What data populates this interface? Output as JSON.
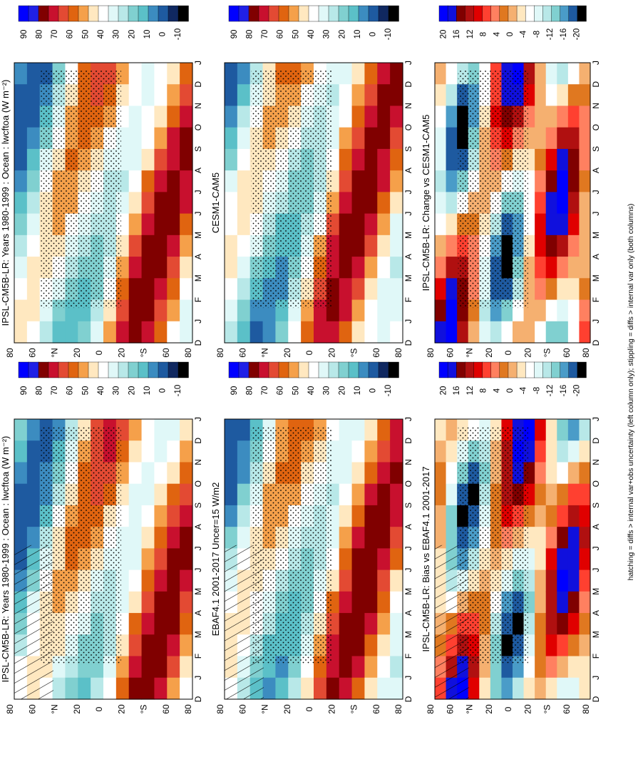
{
  "figure": {
    "footnote": "hatching = diffs > internal var+obs uncertainty (left column only); stippling = diffs > internal var only (both columns)"
  },
  "chart_data": [
    {
      "type": "heatmap",
      "id": "p1",
      "title": "IPSL-CM5B-LR: Years 1980-1999 : Ocean : lwcftoa (W m⁻²)",
      "x": [
        "D",
        "J",
        "F",
        "M",
        "A",
        "M",
        "J",
        "J",
        "A",
        "S",
        "O",
        "N",
        "D",
        "J"
      ],
      "y": [
        "80",
        "60",
        "°N",
        "20",
        "0",
        "20",
        "°S",
        "60",
        "80"
      ],
      "colorbar": [
        "90",
        "80",
        "70",
        "60",
        "50",
        "40",
        "30",
        "20",
        "10",
        "0",
        "-10"
      ],
      "hatching": true,
      "stippling": true
    },
    {
      "type": "heatmap",
      "id": "p2",
      "title": "IPSL-CM5B-LR: Years 1980-1999 : Ocean : lwcftoa (W m⁻²)",
      "x": [
        "D",
        "J",
        "F",
        "M",
        "A",
        "M",
        "J",
        "J",
        "A",
        "S",
        "O",
        "N",
        "D",
        "J"
      ],
      "y": [
        "80",
        "60",
        "°N",
        "20",
        "0",
        "20",
        "°S",
        "60",
        "80"
      ],
      "colorbar": [
        "90",
        "80",
        "70",
        "60",
        "50",
        "40",
        "30",
        "20",
        "10",
        "0",
        "-10"
      ],
      "hatching": false,
      "stippling": true
    },
    {
      "type": "heatmap",
      "id": "p3",
      "title": "EBAF4.1 2001-2017 Uncer=15 W/m2",
      "x": [
        "D",
        "J",
        "F",
        "M",
        "A",
        "M",
        "J",
        "J",
        "A",
        "S",
        "O",
        "N",
        "D",
        "J"
      ],
      "y": [
        "80",
        "60",
        "°N",
        "20",
        "0",
        "20",
        "°S",
        "60",
        "80"
      ],
      "colorbar": [
        "90",
        "80",
        "70",
        "60",
        "50",
        "40",
        "30",
        "20",
        "10",
        "0",
        "-10"
      ],
      "hatching": true,
      "stippling": true
    },
    {
      "type": "heatmap",
      "id": "p4",
      "title": "CESM1-CAM5",
      "x": [
        "D",
        "J",
        "F",
        "M",
        "A",
        "M",
        "J",
        "J",
        "A",
        "S",
        "O",
        "N",
        "D",
        "J"
      ],
      "y": [
        "80",
        "60",
        "°N",
        "20",
        "0",
        "20",
        "°S",
        "60",
        "80"
      ],
      "colorbar": [
        "90",
        "80",
        "70",
        "60",
        "50",
        "40",
        "30",
        "20",
        "10",
        "0",
        "-10"
      ],
      "hatching": false,
      "stippling": true
    },
    {
      "type": "heatmap",
      "id": "p5",
      "title": "IPSL-CM5B-LR: Bias vs EBAF4.1 2001-2017",
      "x": [
        "D",
        "J",
        "F",
        "M",
        "A",
        "M",
        "J",
        "J",
        "A",
        "S",
        "O",
        "N",
        "D",
        "J"
      ],
      "y": [
        "80",
        "60",
        "°N",
        "20",
        "0",
        "20",
        "°S",
        "60",
        "80"
      ],
      "colorbar": [
        "20",
        "16",
        "12",
        "8",
        "4",
        "0",
        "-4",
        "-8",
        "-12",
        "-16",
        "-20"
      ],
      "hatching": true,
      "stippling": true
    },
    {
      "type": "heatmap",
      "id": "p6",
      "title": "IPSL-CM5B-LR: Change vs CESM1-CAM5",
      "x": [
        "D",
        "J",
        "F",
        "M",
        "A",
        "M",
        "J",
        "J",
        "A",
        "S",
        "O",
        "N",
        "D",
        "J"
      ],
      "y": [
        "80",
        "60",
        "°N",
        "20",
        "0",
        "20",
        "°S",
        "60",
        "80"
      ],
      "colorbar": [
        "20",
        "16",
        "12",
        "8",
        "4",
        "0",
        "-4",
        "-8",
        "-12",
        "-16",
        "-20"
      ],
      "hatching": false,
      "stippling": true
    }
  ],
  "colors": {
    "absolute_scale": [
      "#0000ff",
      "#2020e6",
      "#800000",
      "#c8102e",
      "#e34a33",
      "#e06410",
      "#f5a04a",
      "#ffe8c0",
      "#ffffff",
      "#e0f8f8",
      "#b8e8e8",
      "#80d0d0",
      "#5bc0c8",
      "#3c8cc0",
      "#1e5aa0",
      "#102860",
      "#000000"
    ],
    "difference_scale": [
      "#0000ff",
      "#1010dd",
      "#800000",
      "#b01010",
      "#e00000",
      "#ff4030",
      "#ff8060",
      "#e07820",
      "#f5b070",
      "#ffe8c0",
      "#ffffff",
      "#e0f8f8",
      "#b8e8e8",
      "#80d0d0",
      "#4a9cc8",
      "#1e5aa0",
      "#000000"
    ]
  }
}
